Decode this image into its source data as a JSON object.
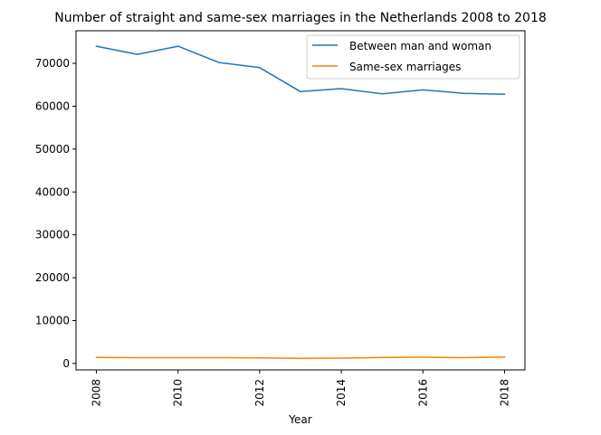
{
  "chart_data": {
    "type": "line",
    "title": "Number of straight and same-sex marriages in the Netherlands 2008 to 2018",
    "xlabel": "Year",
    "ylabel": "",
    "x": [
      2008,
      2009,
      2010,
      2011,
      2012,
      2013,
      2014,
      2015,
      2016,
      2017,
      2018
    ],
    "xticks": [
      2008,
      2010,
      2012,
      2014,
      2016,
      2018
    ],
    "yticks": [
      0,
      10000,
      20000,
      30000,
      40000,
      50000,
      60000,
      70000
    ],
    "xlim": [
      2007.5,
      2018.5
    ],
    "ylim": [
      -1500,
      77600
    ],
    "grid": false,
    "legend_position": "top-right",
    "series": [
      {
        "name": "Between man and woman",
        "color": "#1f77b4",
        "values": [
          74000,
          72100,
          74000,
          70200,
          69000,
          63400,
          64100,
          62900,
          63800,
          63000,
          62800
        ]
      },
      {
        "name": "Same-sex marriages",
        "color": "#ff7f0e",
        "values": [
          1400,
          1350,
          1350,
          1350,
          1300,
          1200,
          1250,
          1400,
          1450,
          1350,
          1500
        ]
      }
    ]
  }
}
